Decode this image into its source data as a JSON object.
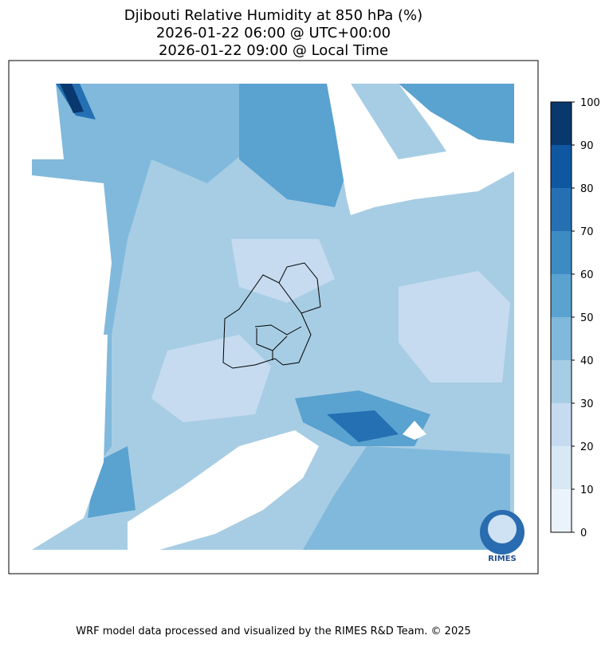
{
  "title": [
    "Djibouti Relative Humidity at 850 hPa (%)",
    "2026-01-22 06:00 @ UTC+00:00",
    "2026-01-22 09:00 @ Local Time"
  ],
  "colorbar": {
    "ticks": [
      0,
      10,
      20,
      30,
      40,
      50,
      60,
      70,
      80,
      90,
      100
    ],
    "colors": [
      "#eaf3fb",
      "#d9e8f5",
      "#c6dbef",
      "#a7cde4",
      "#80b9db",
      "#5aa2d0",
      "#3d8bc3",
      "#2470b3",
      "#0f57a0",
      "#08386e"
    ]
  },
  "logo": "RIMES",
  "footer": "WRF model data processed and visualized by the RIMES R&D Team. © 2025"
}
